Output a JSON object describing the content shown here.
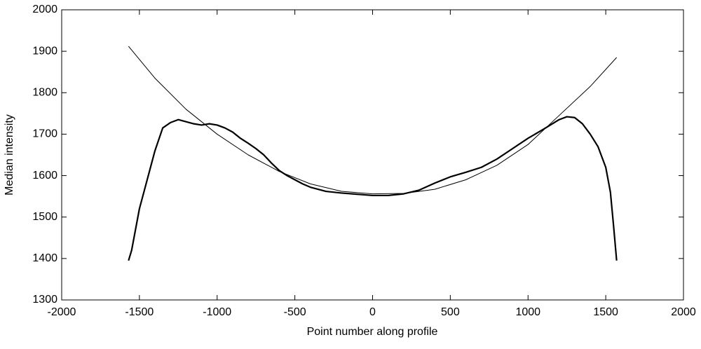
{
  "chart_data": {
    "type": "line",
    "xlabel": "Point number along profile",
    "ylabel": "Median intensity",
    "xlim": [
      -2000,
      2000
    ],
    "xticks": [
      -2000,
      -1500,
      -1000,
      -500,
      0,
      500,
      1000,
      1500,
      2000
    ],
    "ylim": [
      1300,
      2000
    ],
    "yticks": [
      1300,
      1400,
      1500,
      1600,
      1700,
      1800,
      1900,
      2000
    ],
    "grid": false,
    "series": [
      {
        "color": "#000000",
        "width": 2.2,
        "x": [
          -1570,
          -1550,
          -1500,
          -1450,
          -1400,
          -1350,
          -1300,
          -1250,
          -1200,
          -1150,
          -1100,
          -1050,
          -1000,
          -950,
          -900,
          -850,
          -800,
          -750,
          -700,
          -650,
          -600,
          -550,
          -500,
          -450,
          -400,
          -300,
          -200,
          -100,
          0,
          100,
          200,
          300,
          400,
          500,
          600,
          700,
          800,
          900,
          1000,
          1100,
          1200,
          1250,
          1300,
          1350,
          1400,
          1450,
          1500,
          1530,
          1550,
          1570
        ],
        "values": [
          1395,
          1420,
          1520,
          1590,
          1660,
          1715,
          1728,
          1735,
          1730,
          1725,
          1722,
          1725,
          1722,
          1715,
          1705,
          1690,
          1678,
          1665,
          1650,
          1630,
          1612,
          1600,
          1590,
          1580,
          1572,
          1562,
          1558,
          1555,
          1552,
          1552,
          1556,
          1565,
          1582,
          1597,
          1608,
          1620,
          1640,
          1665,
          1690,
          1712,
          1735,
          1742,
          1740,
          1725,
          1700,
          1670,
          1620,
          1560,
          1480,
          1395
        ]
      },
      {
        "color": "#000000",
        "width": 1,
        "x": [
          -1570,
          -1400,
          -1200,
          -1000,
          -800,
          -600,
          -400,
          -200,
          0,
          200,
          400,
          600,
          800,
          1000,
          1200,
          1400,
          1570
        ],
        "values": [
          1912,
          1835,
          1760,
          1700,
          1650,
          1610,
          1580,
          1562,
          1556,
          1557,
          1567,
          1590,
          1625,
          1675,
          1745,
          1815,
          1885
        ]
      }
    ]
  }
}
